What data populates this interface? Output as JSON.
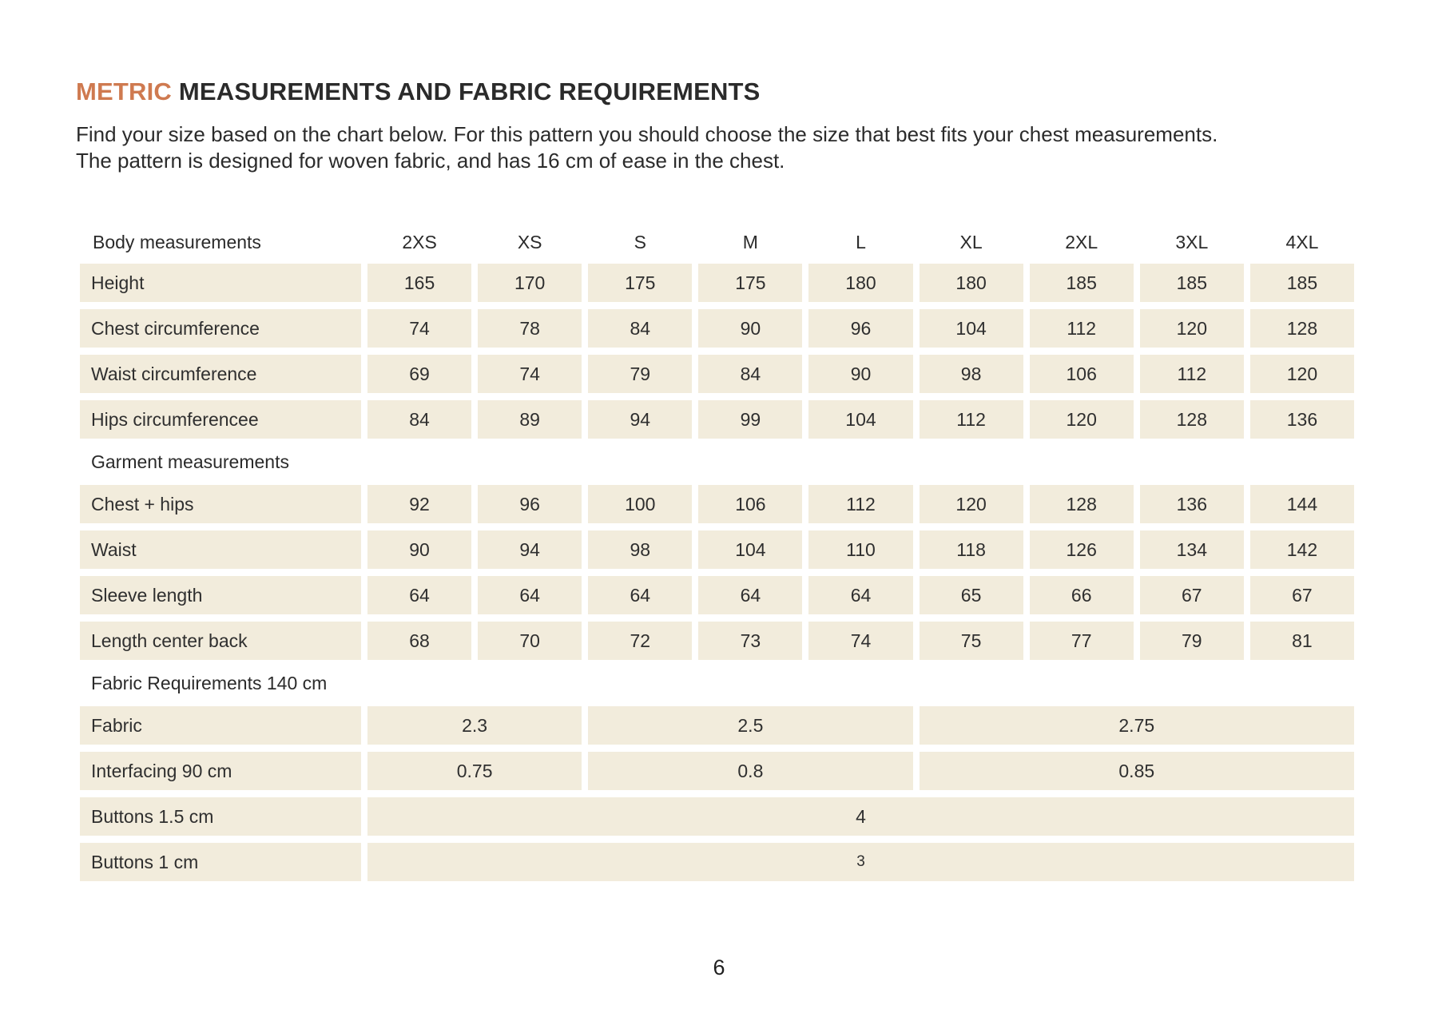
{
  "header": {
    "title_accent": "METRIC",
    "title_rest": "MEASUREMENTS AND FABRIC REQUIREMENTS",
    "intro": "Find your size based on the chart below. For this pattern you should choose the size that best fits your chest measurements. The pattern is designed for woven fabric, and has 16 cm of ease in the chest."
  },
  "colors": {
    "accent": "#cf7a50",
    "text": "#2d2d2d",
    "cell_background": "#f2ecdc",
    "page_background": "#ffffff"
  },
  "table": {
    "label_column_header": "Body measurements",
    "sizes": [
      "2XS",
      "XS",
      "S",
      "M",
      "L",
      "XL",
      "2XL",
      "3XL",
      "4XL"
    ],
    "rows": [
      {
        "type": "values",
        "label": "Height",
        "values": [
          "165",
          "170",
          "175",
          "175",
          "180",
          "180",
          "185",
          "185",
          "185"
        ]
      },
      {
        "type": "values",
        "label": "Chest circumference",
        "values": [
          "74",
          "78",
          "84",
          "90",
          "96",
          "104",
          "112",
          "120",
          "128"
        ]
      },
      {
        "type": "values",
        "label": "Waist circumference",
        "values": [
          "69",
          "74",
          "79",
          "84",
          "90",
          "98",
          "106",
          "112",
          "120"
        ]
      },
      {
        "type": "values",
        "label": "Hips circumferencee",
        "values": [
          "84",
          "89",
          "94",
          "99",
          "104",
          "112",
          "120",
          "128",
          "136"
        ]
      },
      {
        "type": "section",
        "label": "Garment measurements"
      },
      {
        "type": "values",
        "label": "Chest + hips",
        "values": [
          "92",
          "96",
          "100",
          "106",
          "112",
          "120",
          "128",
          "136",
          "144"
        ]
      },
      {
        "type": "values",
        "label": "Waist",
        "values": [
          "90",
          "94",
          "98",
          "104",
          "110",
          "118",
          "126",
          "134",
          "142"
        ]
      },
      {
        "type": "values",
        "label": "Sleeve length",
        "values": [
          "64",
          "64",
          "64",
          "64",
          "64",
          "65",
          "66",
          "67",
          "67"
        ]
      },
      {
        "type": "values",
        "label": "Length center back",
        "values": [
          "68",
          "70",
          "72",
          "73",
          "74",
          "75",
          "77",
          "79",
          "81"
        ]
      },
      {
        "type": "section",
        "label": "Fabric Requirements 140 cm"
      },
      {
        "type": "merged",
        "label": "Fabric",
        "groups": [
          {
            "span": 2,
            "value": "2.3"
          },
          {
            "span": 3,
            "value": "2.5"
          },
          {
            "span": 4,
            "value": "2.75"
          }
        ]
      },
      {
        "type": "merged",
        "label": "Interfacing 90 cm",
        "groups": [
          {
            "span": 2,
            "value": "0.75"
          },
          {
            "span": 3,
            "value": "0.8"
          },
          {
            "span": 4,
            "value": "0.85"
          }
        ]
      },
      {
        "type": "merged",
        "label": "Buttons 1.5 cm",
        "groups": [
          {
            "span": 9,
            "value": "4"
          }
        ]
      },
      {
        "type": "merged",
        "label": "Buttons 1 cm",
        "small_value": true,
        "groups": [
          {
            "span": 9,
            "value": "3"
          }
        ]
      }
    ]
  },
  "footer": {
    "page_number": "6"
  }
}
